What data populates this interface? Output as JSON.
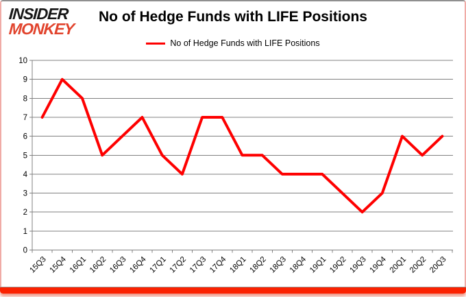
{
  "logo": {
    "line1": "INSIDER",
    "line2": "MONKEY"
  },
  "header": {
    "title": "No of Hedge Funds with LIFE Positions"
  },
  "legend": {
    "label": "No of Hedge Funds with LIFE Positions"
  },
  "colors": {
    "line_red": "#fe0000",
    "logo_red": "#e1432c",
    "bottom_bar_red": "#fb2100",
    "side_border_pink": "#f0aba6",
    "top_border_gray": "#8f8f8f",
    "grid_gray": "#808080"
  },
  "chart_data": {
    "type": "line",
    "title": "No of Hedge Funds with LIFE Positions",
    "categories": [
      "15Q3",
      "15Q4",
      "16Q1",
      "16Q2",
      "16Q3",
      "16Q4",
      "17Q1",
      "17Q2",
      "17Q3",
      "17Q4",
      "18Q1",
      "18Q2",
      "18Q3",
      "18Q4",
      "19Q1",
      "19Q2",
      "19Q3",
      "19Q4",
      "20Q1",
      "20Q2",
      "20Q3"
    ],
    "series": [
      {
        "name": "No of Hedge Funds with LIFE Positions",
        "color": "#fe0000",
        "values": [
          7,
          9,
          8,
          5,
          6,
          7,
          5,
          4,
          7,
          7,
          5,
          5,
          4,
          4,
          4,
          3,
          2,
          3,
          6,
          5,
          6
        ]
      }
    ],
    "xlabel": "",
    "ylabel": "",
    "ylim": [
      0,
      10
    ],
    "yticks": [
      0,
      1,
      2,
      3,
      4,
      5,
      6,
      7,
      8,
      9,
      10
    ],
    "grid": true,
    "legend_position": "top"
  }
}
